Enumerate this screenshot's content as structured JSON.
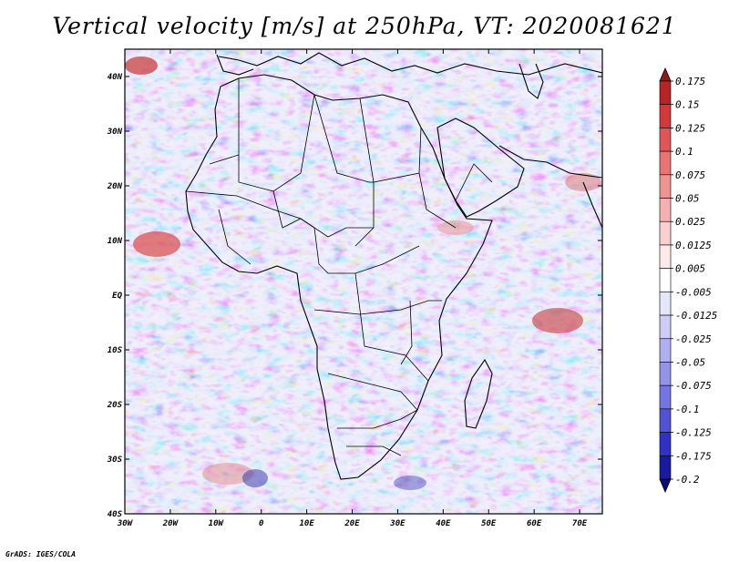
{
  "title": "Vertical velocity [m/s] at 250hPa, VT: 2020081621",
  "credit": "GrADS: IGES/COLA",
  "map": {
    "lon_range": [
      -30,
      75
    ],
    "lat_range": [
      -40,
      45
    ],
    "lon_ticks": [
      "30W",
      "20W",
      "10W",
      "0",
      "10E",
      "20E",
      "30E",
      "40E",
      "50E",
      "60E",
      "70E"
    ],
    "lon_tick_values": [
      -30,
      -20,
      -10,
      0,
      10,
      20,
      30,
      40,
      50,
      60,
      70
    ],
    "lat_ticks": [
      "40N",
      "30N",
      "20N",
      "10N",
      "EQ",
      "10S",
      "20S",
      "30S",
      "40S"
    ],
    "lat_tick_values": [
      40,
      30,
      20,
      10,
      0,
      -10,
      -20,
      -30,
      -40
    ],
    "field": "vertical-velocity-shaded"
  },
  "colorbar": {
    "labels": [
      "0.175",
      "0.15",
      "0.125",
      "0.1",
      "0.075",
      "0.05",
      "0.025",
      "0.0125",
      "0.005",
      "-0.005",
      "-0.0125",
      "-0.025",
      "-0.05",
      "-0.075",
      "-0.1",
      "-0.125",
      "-0.175",
      "-0.2"
    ],
    "colors": [
      "#8f1a1a",
      "#b52525",
      "#d13a3a",
      "#e05656",
      "#ea7474",
      "#f09393",
      "#f5b1b1",
      "#f9cfcf",
      "#fce9e9",
      "#ffffff",
      "#e6e6fb",
      "#ccccf6",
      "#b0b0f0",
      "#9393ea",
      "#7474e2",
      "#5252d6",
      "#3232c2",
      "#1a1aa0",
      "#0a0a7a"
    ]
  }
}
